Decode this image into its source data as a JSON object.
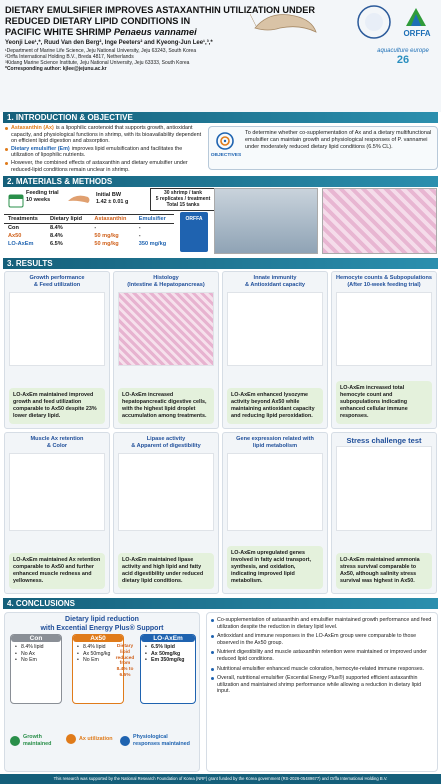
{
  "header": {
    "title_lines": [
      "DIETARY EMULSIFIER IMPROVES ASTAXANTHIN UTILIZATION UNDER",
      "REDUCED DIETARY LIPID CONDITIONS IN",
      "PACIFIC WHITE SHRIMP"
    ],
    "species": "Penaeus vannamei",
    "authors": "Yeonji Lee¹,*, Ruud Van den Berg², Inge Peeters² and Kyeong-Jun Lee¹,³,*",
    "affiliations": [
      "¹Department of Marine Life Science, Jeju National University, Jeju 63243, South Korea",
      "²Orffa International Holding B.V., Breda 4817, Netherlands",
      "³Kidang Marine Science Institute, Jeju National University, Jeju 63333, South Korea",
      "*Corresponding author: kjlee@jejunu.ac.kr"
    ],
    "logo_company": "ORFFA",
    "logo_conference": "aquaculture europe",
    "logo_year": "26"
  },
  "introduction": {
    "heading": "1. INTRODUCTION & OBJECTIVE",
    "bullets": [
      {
        "term": "Astaxanthin (Ax)",
        "text": "is a lipophilic carotenoid that supports growth, antioxidant capacity, and physiological functions in shrimp, with its bioavailability dependent on efficient lipid digestion and absorption."
      },
      {
        "term": "Dietary emulsifier (Em)",
        "text": "improves lipid emulsification and facilitates the utilization of lipophilic nutrients."
      },
      {
        "text": "However, the combined effects of astaxanthin and dietary emulsifier under reduced-lipid conditions remain unclear in shrimp."
      }
    ],
    "objective_label": "OBJECTIVES",
    "objective": "To determine whether co-supplementation of Ax and a dietary multifunctional emulsifier can maintain growth and physiological responses of P. vannamei under moderately reduced dietary lipid conditions (6.5% CL)."
  },
  "methods": {
    "heading": "2. MATERIALS & METHODS",
    "feeding": [
      "Feeding trial",
      "10 weeks"
    ],
    "initial_bw": [
      "Initial BW",
      "1.42 ± 0.01 g"
    ],
    "tanks": [
      "30 shrimp / tank",
      "5 replicates / treatment",
      "Total 15 tanks"
    ],
    "table": {
      "columns": [
        "Treatments",
        "Dietary lipid",
        "Astaxanthin",
        "Emulsifier"
      ],
      "rows": [
        [
          "Con",
          "8.4%",
          "-",
          "-"
        ],
        [
          "Ax50",
          "8.4%",
          "50 mg/kg",
          "-"
        ],
        [
          "LO-AxEm",
          "6.5%",
          "50 mg/kg",
          "350 mg/kg"
        ]
      ]
    },
    "product": "ORFFA"
  },
  "results": {
    "heading": "3. RESULTS",
    "panels": [
      {
        "title": [
          "Growth performance",
          "& Feed utilization"
        ],
        "finding": "LO-AxEm maintained improved growth and feed utilization comparable to Ax50 despite 23% lower dietary lipid."
      },
      {
        "title": [
          "Histology",
          "(Intestine & Hepatopancreas)"
        ],
        "finding": "LO-AxEm increased hepatopancreatic digestive cells, with the highest lipid droplet accumulation among treatments."
      },
      {
        "title": [
          "Innate immunity",
          "& Antioxidant capacity"
        ],
        "finding": "LO-AxEm enhanced lysozyme activity beyond Ax50 while maintaining antioxidant capacity and reducing lipid peroxidation."
      },
      {
        "title": [
          "Hemocyte counts & Subpopulations",
          "(After 10-week feeding trial)"
        ],
        "finding": "LO-AxEm increased total hemocyte count and subpopulations indicating enhanced cellular immune responses."
      },
      {
        "title": [
          "Muscle Ax retention",
          "& Color"
        ],
        "finding": "LO-AxEm maintained Ax retention comparable to Ax50 and further enhanced muscle redness and yellowness."
      },
      {
        "title": [
          "Lipase activity",
          "& Apparent of digestibility"
        ],
        "finding": "LO-AxEm maintained lipase activity and high lipid and fatty acid digestibility under reduced dietary lipid conditions."
      },
      {
        "title": [
          "Gene expression related with",
          "lipid metabolism"
        ],
        "finding": "LO-AxEm upregulated genes involved in fatty acid transport, synthesis, and oxidation, indicating improved lipid metabolism."
      },
      {
        "title": [
          "Stress challenge test"
        ],
        "finding": "LO-AxEm maintained ammonia stress survival comparable to Ax50, although salinity stress survival was highest in Ax50."
      }
    ]
  },
  "conclusions": {
    "heading": "4. CONCLUSIONS",
    "summary_title": [
      "Dietary lipid reduction",
      "with Excential Energy Plus® Support"
    ],
    "groups": [
      {
        "name": "Con",
        "items": [
          "8.4% lipid",
          "No Ax",
          "No Em"
        ]
      },
      {
        "name": "Ax50",
        "items": [
          "8.4% lipid",
          "Ax 50mg/kg",
          "No Em"
        ]
      },
      {
        "name": "LO-AxEm",
        "items": [
          "6.5% lipid",
          "Ax 50mg/kg",
          "Em 350mg/kg"
        ]
      }
    ],
    "arrow_text": [
      "Dietary",
      "lipid",
      "reduced",
      "from",
      "8.4% to",
      "6.5%"
    ],
    "outcomes": [
      "Growth maintained",
      "Ax utilization",
      "Physiological responses maintained"
    ],
    "bullets": [
      "Co-supplementation of astaxanthin and emulsifier maintained growth performance and feed utilization despite the reduction in dietary lipid level.",
      "Antioxidant and immune responses in the LO-AxEm group were comparable to those observed in the Ax50 group.",
      "Nutrient digestibility and muscle astaxanthin retention were maintained or improved under reduced lipid conditions.",
      "Nutritional emulsifier enhanced muscle coloration, hemocyte-related immune responses.",
      "Overall, nutritional emulsifier (Excential Energy Plus®) supported efficient astaxanthin utilization and maintained shrimp performance while allowing a reduction in dietary lipid input."
    ]
  },
  "footer": "This research was supported by the National Research Foundation of Korea (NRF) grant funded by the Korea government (RS-2026-05489677) and Orffa International Holding B.V."
}
